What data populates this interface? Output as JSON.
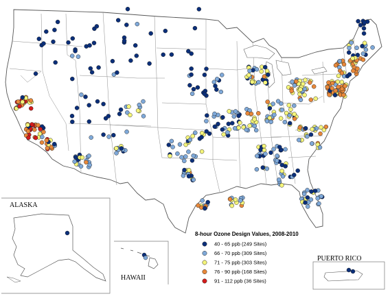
{
  "colors": {
    "class_40_65": "#0b2f7a",
    "class_66_70": "#7fa9d9",
    "class_71_75": "#f5f57a",
    "class_76_90": "#e8883a",
    "class_91_112": "#d41c1c"
  },
  "legend": {
    "title": "8-hour Ozone Design Values, 2008-2010",
    "items": [
      {
        "label": "40 - 65 ppb (249 Sites)",
        "color": "#0b2f7a"
      },
      {
        "label": "66 - 70 ppb (309 Sites)",
        "color": "#7fa9d9"
      },
      {
        "label": "71 - 75 ppb (303 Sites)",
        "color": "#f5f57a"
      },
      {
        "label": "76 - 90 ppb (168 Sites)",
        "color": "#e8883a"
      },
      {
        "label": "91 - 112 ppb (36 Sites)",
        "color": "#d41c1c"
      }
    ]
  },
  "insets": {
    "alaska": "ALASKA",
    "hawaii": "HAWAII",
    "puerto_rico": "PUERTO RICO"
  }
}
